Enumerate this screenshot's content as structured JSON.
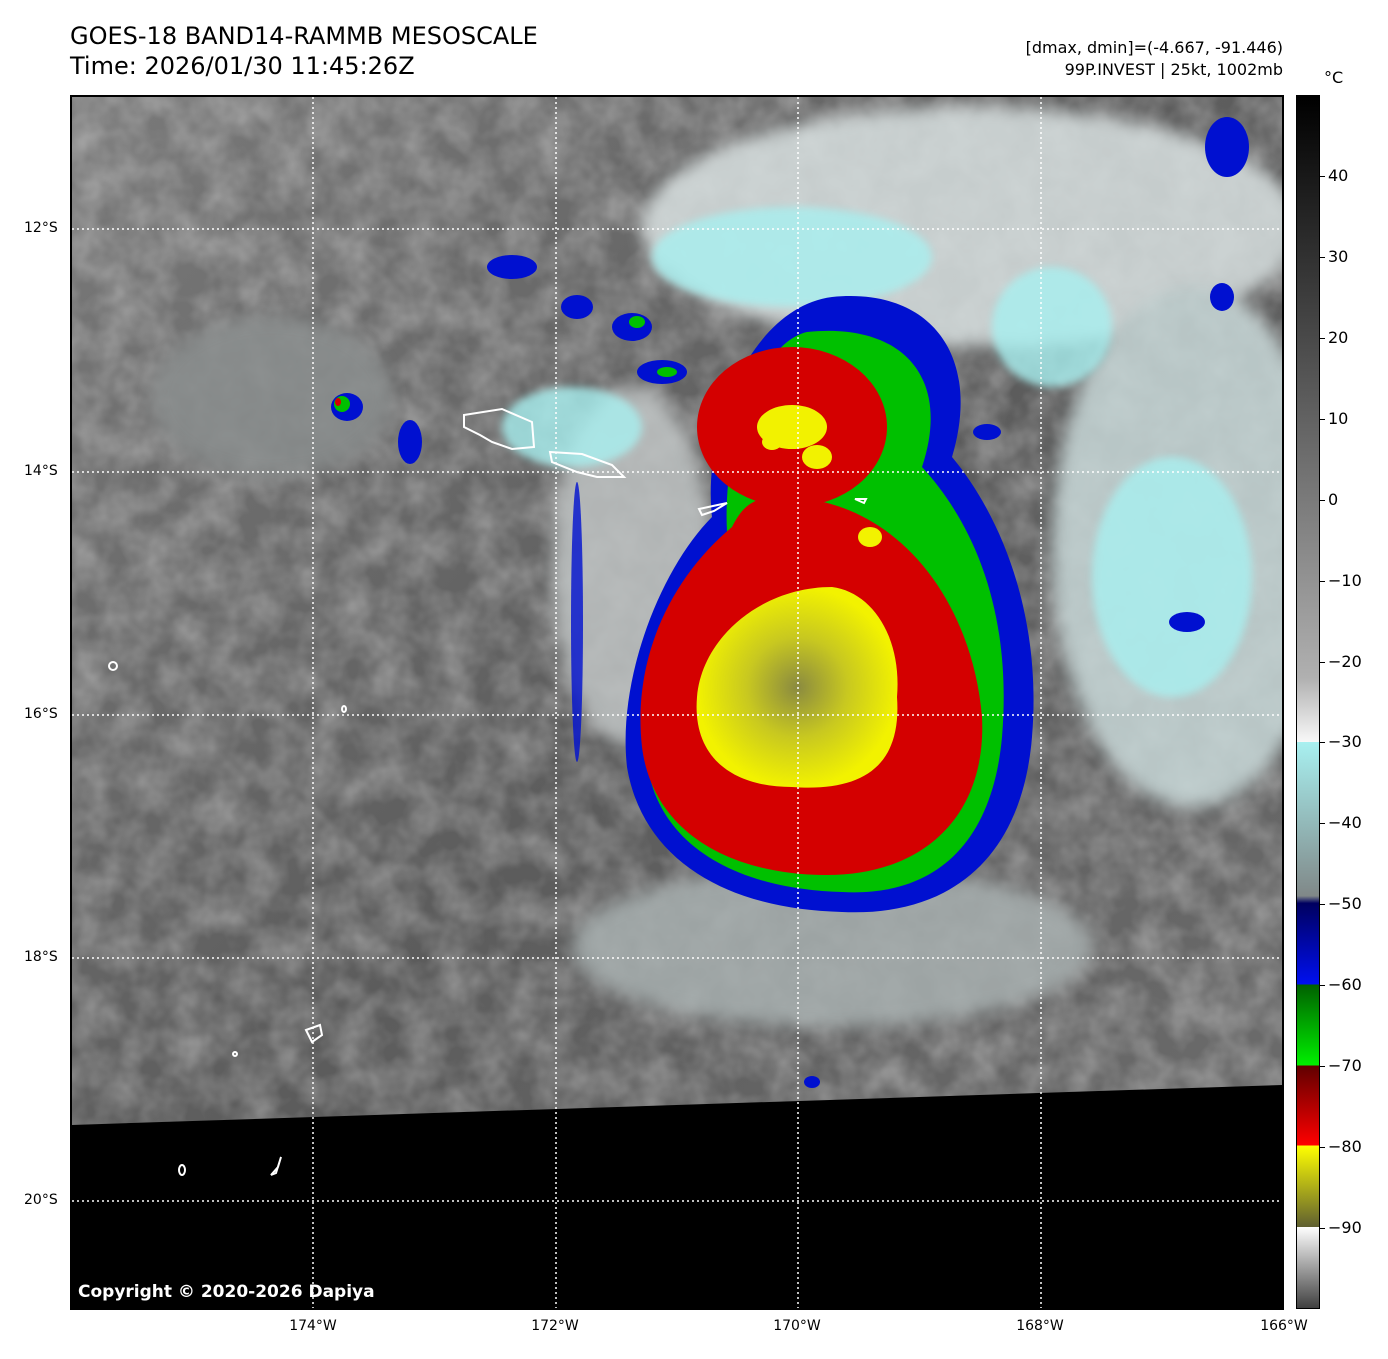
{
  "header": {
    "title_line1": "GOES-18 BAND14-RAMMB MESOSCALE",
    "title_line2": "Time: 2026/01/30 11:45:26Z",
    "range_text": "[dmax, dmin]=(-4.667, -91.446)",
    "storm_text": "99P.INVEST | 25kt, 1002mb"
  },
  "map": {
    "lat_labels": [
      "12°S",
      "14°S",
      "16°S",
      "18°S",
      "20°S"
    ],
    "lon_labels": [
      "174°W",
      "172°W",
      "170°W",
      "168°W",
      "166°W"
    ],
    "copyright": "Copyright © 2020-2026 Dapiya",
    "colors": {
      "cold_yellow": "#f2f200",
      "red": "#d40000",
      "green": "#00c000",
      "blue": "#0010d0",
      "cyan": "#a8f0f0",
      "no_data": "#000000"
    }
  },
  "colorbar": {
    "unit": "°C",
    "ticks": [
      "40",
      "30",
      "20",
      "10",
      "0",
      "−10",
      "−20",
      "−30",
      "−40",
      "−50",
      "−60",
      "−70",
      "−80",
      "−90"
    ],
    "range": [
      -100,
      50
    ]
  }
}
